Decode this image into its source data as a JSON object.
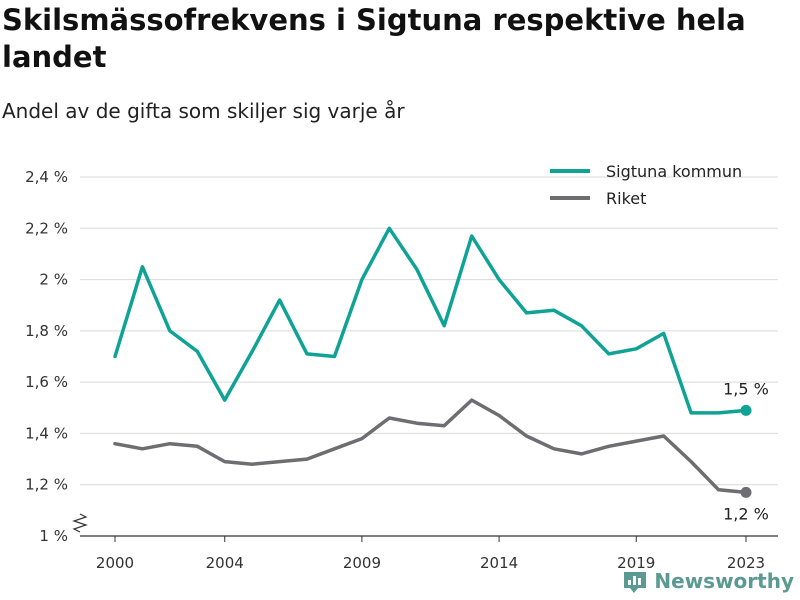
{
  "title": "Skilsmässofrekvens i Sigtuna respektive hela landet",
  "subtitle": "Andel av de gifta som skiljer sig varje år",
  "brand": {
    "name": "Newsworthy",
    "icon": "newsworthy-logo-icon"
  },
  "colors": {
    "sigtuna": "#0fa396",
    "riket": "#6d6d72",
    "grid": "#d9d9d9",
    "axis": "#333333",
    "brand": "#5b9a92"
  },
  "chart_data": {
    "type": "line",
    "title": "Skilsmässofrekvens i Sigtuna respektive hela landet",
    "subtitle": "Andel av de gifta som skiljer sig varje år",
    "x": [
      2000,
      2001,
      2002,
      2003,
      2004,
      2005,
      2006,
      2007,
      2008,
      2009,
      2010,
      2011,
      2012,
      2013,
      2014,
      2015,
      2016,
      2017,
      2018,
      2019,
      2020,
      2021,
      2022,
      2023
    ],
    "series": [
      {
        "name": "Sigtuna kommun",
        "values": [
          1.7,
          2.05,
          1.8,
          1.72,
          1.53,
          1.72,
          1.92,
          1.71,
          1.7,
          2.0,
          2.2,
          2.04,
          1.82,
          2.17,
          2.0,
          1.87,
          1.88,
          1.82,
          1.71,
          1.73,
          1.79,
          1.48,
          1.48,
          1.49
        ]
      },
      {
        "name": "Riket",
        "values": [
          1.36,
          1.34,
          1.36,
          1.35,
          1.29,
          1.28,
          1.29,
          1.3,
          1.34,
          1.38,
          1.46,
          1.44,
          1.43,
          1.53,
          1.47,
          1.39,
          1.34,
          1.32,
          1.35,
          1.37,
          1.39,
          1.29,
          1.18,
          1.17
        ]
      }
    ],
    "ylim": [
      1.0,
      2.4
    ],
    "y_ticks": [
      1.0,
      1.2,
      1.4,
      1.6,
      1.8,
      2.0,
      2.2,
      2.4
    ],
    "y_tick_labels": [
      "1 %",
      "1,2 %",
      "1,4 %",
      "1,6 %",
      "1,8 %",
      "2 %",
      "2,2 %",
      "2,4 %"
    ],
    "x_ticks": [
      2000,
      2004,
      2009,
      2014,
      2019,
      2023
    ],
    "x_tick_labels": [
      "2000",
      "2004",
      "2009",
      "2014",
      "2019",
      "2023"
    ],
    "end_labels": [
      "1,5 %",
      "1,2 %"
    ],
    "grid": true,
    "axis_break": true,
    "legend_position": "top-right"
  }
}
